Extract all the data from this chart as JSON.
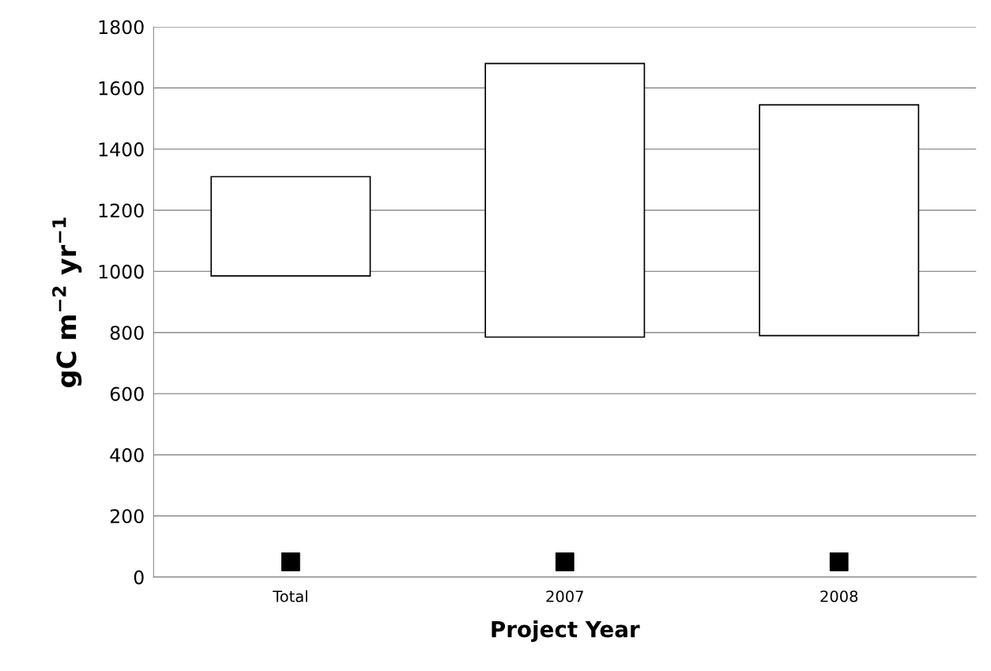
{
  "chart_data": {
    "type": "bar",
    "categories": [
      "Total",
      "2007",
      "2008"
    ],
    "series": [
      {
        "color": "#ffffff",
        "base": [
          985,
          785,
          790
        ],
        "values": [
          325,
          895,
          755
        ]
      },
      {
        "type": "scatter",
        "color": "#000000",
        "marker": "square",
        "values": [
          50,
          50,
          50
        ]
      }
    ],
    "xlabel": "Project Year",
    "ylabel": "gC m$^{−2}$ yr$^{−1}$",
    "ylim": [
      0,
      1800
    ],
    "yticks": [
      0,
      200,
      400,
      600,
      800,
      1000,
      1200,
      1400,
      1600,
      1800
    ],
    "grid": "y"
  }
}
